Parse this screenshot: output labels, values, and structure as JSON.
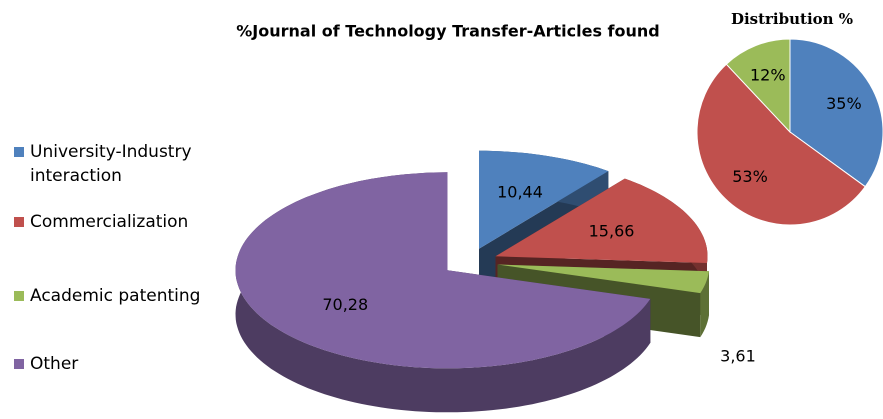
{
  "chart_data": [
    {
      "type": "pie3d",
      "title": "%Journal of Technology Transfer-Articles found",
      "categories": [
        "University-Industry interaction",
        "Commercialization",
        "Academic patenting",
        "Other"
      ],
      "values": [
        10.44,
        15.66,
        3.61,
        70.28
      ],
      "value_labels": [
        "10,44",
        "15,66",
        "3,61",
        "70,28"
      ],
      "colors": [
        "#4f81bd",
        "#c0504d",
        "#9bbb59",
        "#8064a2"
      ],
      "legend": "left"
    },
    {
      "type": "pie",
      "title": "Distribution %",
      "values": [
        35,
        53,
        12
      ],
      "value_labels": [
        "35%",
        "53%",
        "12%"
      ],
      "colors": [
        "#4f81bd",
        "#c0504d",
        "#9bbb59"
      ]
    }
  ]
}
